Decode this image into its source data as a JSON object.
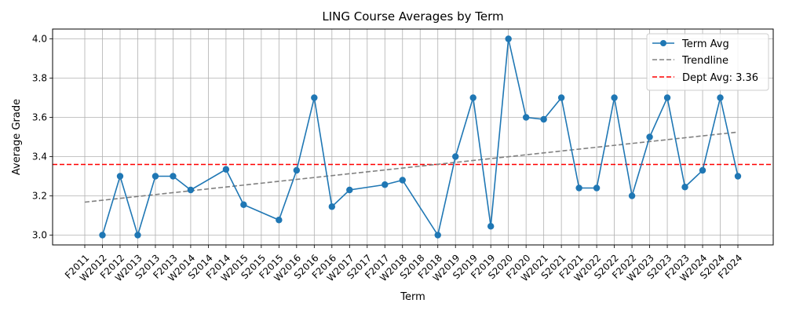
{
  "chart_data": {
    "type": "line",
    "title": "LING Course Averages by Term",
    "xlabel": "Term",
    "ylabel": "Average Grade",
    "categories": [
      "F2011",
      "W2012",
      "F2012",
      "W2013",
      "S2013",
      "F2013",
      "W2014",
      "S2014",
      "F2014",
      "W2015",
      "S2015",
      "F2015",
      "W2016",
      "S2016",
      "F2016",
      "W2017",
      "S2017",
      "F2017",
      "W2018",
      "S2018",
      "F2018",
      "W2019",
      "S2019",
      "F2019",
      "S2020",
      "F2020",
      "W2021",
      "S2021",
      "F2021",
      "W2022",
      "S2022",
      "F2022",
      "W2023",
      "S2023",
      "F2023",
      "W2024",
      "S2024",
      "F2024"
    ],
    "series": [
      {
        "name": "Term Avg",
        "color": "#1f77b4",
        "values": [
          null,
          3.0,
          3.3,
          3.0,
          3.3,
          3.3,
          3.23,
          null,
          3.335,
          3.155,
          null,
          3.077,
          3.33,
          3.7,
          3.145,
          3.23,
          null,
          3.257,
          3.28,
          null,
          3.0,
          3.4,
          3.7,
          3.045,
          4.0,
          3.6,
          3.59,
          3.7,
          3.24,
          3.24,
          3.7,
          3.2,
          3.5,
          3.7,
          3.245,
          3.33,
          3.7,
          3.3
        ]
      },
      {
        "name": "Trendline",
        "color": "#808080",
        "style": "dashed",
        "start": 3.168,
        "end": 3.525
      },
      {
        "name": "Dept Avg: 3.36",
        "color": "#ff0000",
        "style": "dashed",
        "value": 3.36
      }
    ],
    "yticks": [
      "3.0",
      "3.2",
      "3.4",
      "3.6",
      "3.8",
      "4.0"
    ],
    "ylim": [
      2.95,
      4.05
    ],
    "grid": true,
    "legend_position": "top-right"
  }
}
